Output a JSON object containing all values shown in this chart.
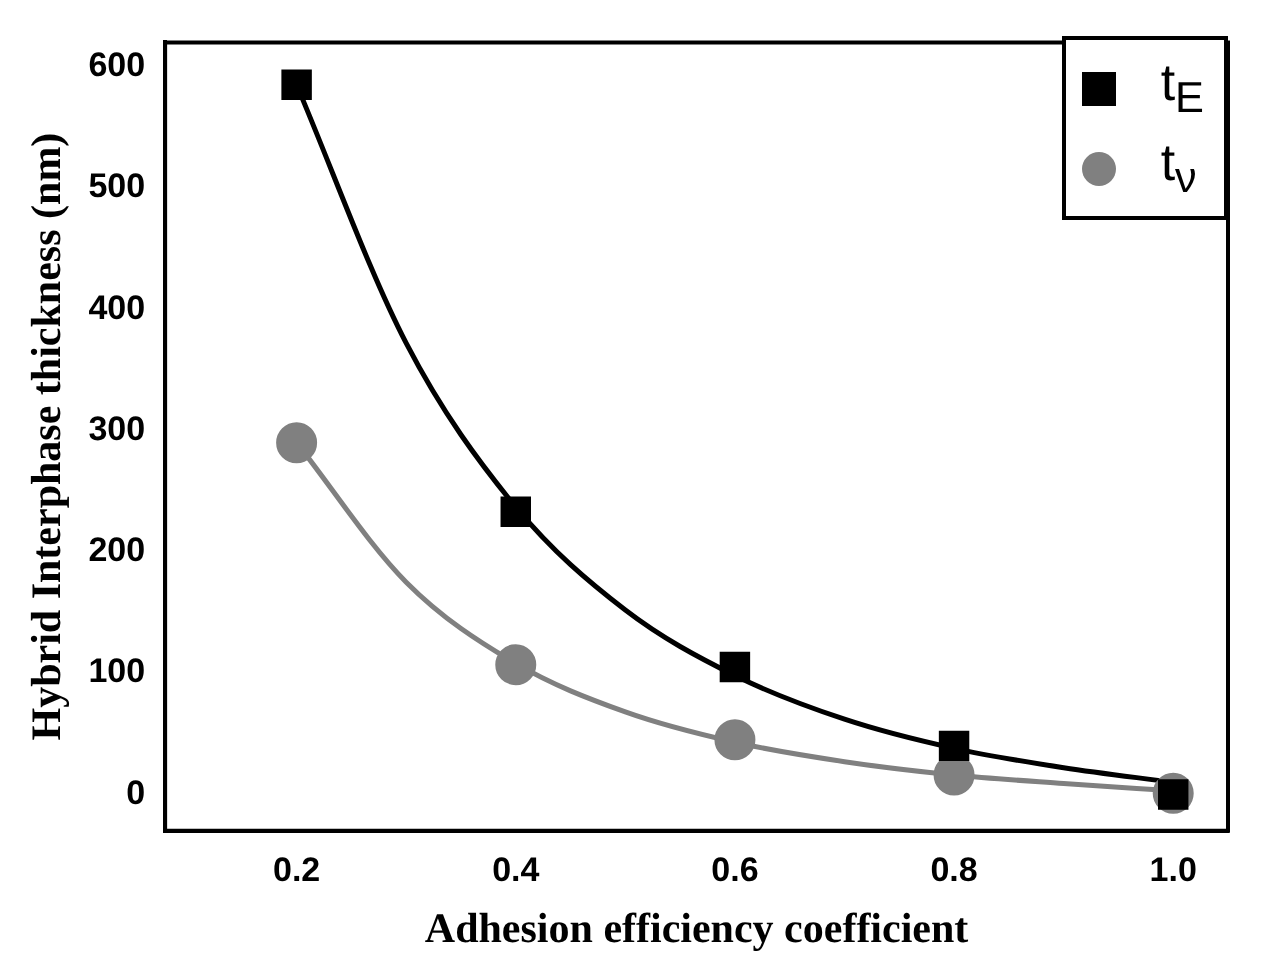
{
  "chart_data": {
    "type": "scatter",
    "xlabel": "Adhesion efficiency coefficient",
    "ylabel": "Hybrid Interphase thickness (nm)",
    "x": [
      0.2,
      0.4,
      0.6,
      0.8,
      1.0
    ],
    "series": [
      {
        "name": "t$_{E}$",
        "color": "#000000",
        "marker": "square",
        "values": [
          585,
          233,
          105,
          40,
          0
        ]
      },
      {
        "name": "t$_{ν}$",
        "color": "#808080",
        "marker": "circle",
        "values": [
          290,
          107,
          45,
          16,
          1
        ]
      },
      {
        "type": "line",
        "color": "#000000",
        "x": [
          0.2,
          0.3,
          0.4,
          0.5,
          0.6,
          0.7,
          0.8,
          0.9,
          1.0
        ],
        "values": [
          585,
          372,
          237,
          152,
          98,
          62,
          38,
          22,
          10
        ]
      },
      {
        "type": "line",
        "color": "#808080",
        "x": [
          0.2,
          0.3,
          0.4,
          0.5,
          0.6,
          0.7,
          0.8,
          0.9,
          1.0
        ],
        "values": [
          290,
          175,
          108,
          68,
          43,
          27,
          16,
          9,
          3
        ]
      }
    ],
    "xlim": [
      0.08,
      1.05
    ],
    "xticks": [
      {
        "value": 0.2,
        "label": "0.2"
      },
      {
        "value": 0.4,
        "label": "0.4"
      },
      {
        "value": 0.6,
        "label": "0.6"
      },
      {
        "value": 0.8,
        "label": "0.8"
      },
      {
        "value": 1,
        "label": "1.0"
      }
    ],
    "ylim": [
      -30,
      620
    ],
    "yticks": [
      0,
      100,
      200,
      300,
      400,
      500,
      600
    ],
    "grid": false,
    "legend": "top right"
  }
}
